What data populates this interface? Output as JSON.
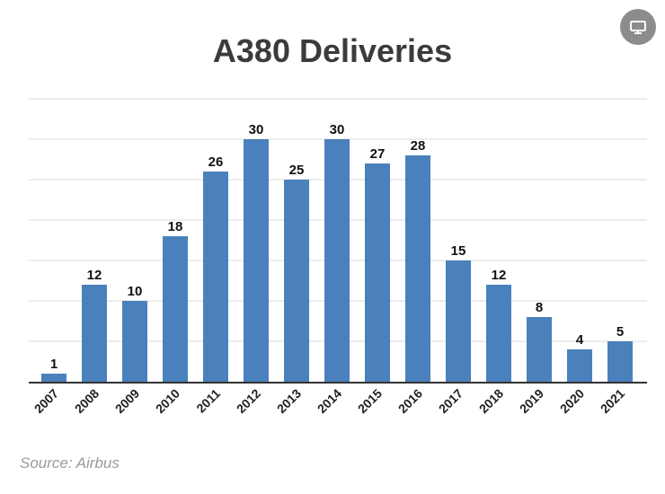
{
  "chart_data": {
    "type": "bar",
    "title": "A380 Deliveries",
    "categories": [
      "2007",
      "2008",
      "2009",
      "2010",
      "2011",
      "2012",
      "2013",
      "2014",
      "2015",
      "2016",
      "2017",
      "2018",
      "2019",
      "2020",
      "2021"
    ],
    "values": [
      1,
      12,
      10,
      18,
      26,
      30,
      25,
      30,
      27,
      28,
      15,
      12,
      8,
      4,
      5
    ],
    "xlabel": "",
    "ylabel": "",
    "ylim": [
      0,
      35
    ],
    "grid": true,
    "bar_color": "#4a81bd"
  },
  "source": "Source: Airbus",
  "embed_icon": "monitor-icon"
}
